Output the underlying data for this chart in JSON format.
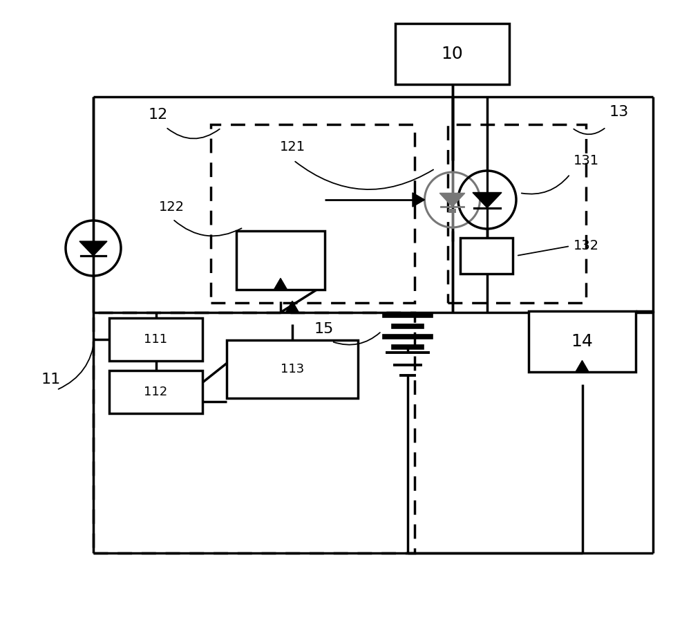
{
  "bg": "#ffffff",
  "lc": "#000000",
  "gc": "#777777",
  "labels": {
    "10": "10",
    "11": "11",
    "12": "12",
    "13": "13",
    "14": "14",
    "15": "15",
    "111": "111",
    "112": "112",
    "113": "113",
    "121": "121",
    "122": "122",
    "131": "131",
    "132": "132"
  },
  "fig_w": 10.0,
  "fig_h": 8.94,
  "lw_main": 2.0,
  "lw_thick": 2.5,
  "lw_dashed": 2.0,
  "diode_r": 0.38,
  "gray_diode_r": 0.35
}
